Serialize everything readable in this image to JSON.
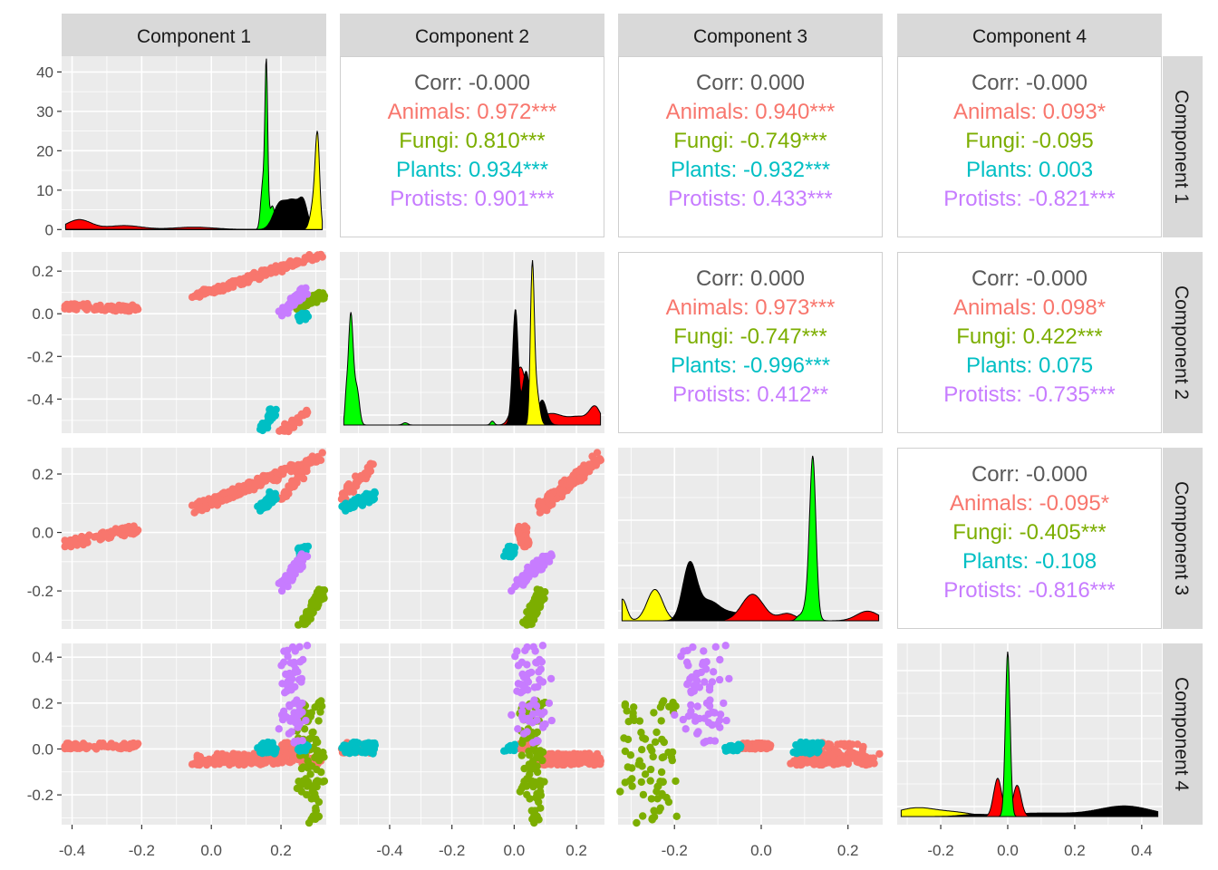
{
  "chart_data": {
    "type": "scatter",
    "title": "",
    "variables": [
      "Component 1",
      "Component 2",
      "Component 3",
      "Component 4"
    ],
    "groups": [
      {
        "name": "Animals",
        "color": "#F8766D"
      },
      {
        "name": "Fungi",
        "color": "#7CAE00"
      },
      {
        "name": "Plants",
        "color": "#00BFC4"
      },
      {
        "name": "Protists",
        "color": "#C77CFF"
      }
    ],
    "density_fill_colors": [
      "#FF0000",
      "#00FF00",
      "#000000",
      "#FFFF00"
    ],
    "axes": {
      "x_ticks": [
        [
          "-0.4",
          "-0.2",
          "0.0",
          "0.2"
        ],
        [
          "-0.4",
          "-0.2",
          "0.0",
          "0.2"
        ],
        [
          "-0.2",
          "0.0",
          "0.2"
        ],
        [
          "-0.2",
          "0.0",
          "0.2",
          "0.4"
        ]
      ],
      "y_ticks": [
        [
          "0",
          "10",
          "20",
          "30",
          "40"
        ],
        [
          "-0.4",
          "-0.2",
          "0.0",
          "0.2"
        ],
        [
          "-0.2",
          "0.0",
          "0.2"
        ],
        [
          "-0.2",
          "0.0",
          "0.2",
          "0.4"
        ]
      ],
      "x_ranges": [
        [
          -0.43,
          0.33
        ],
        [
          -0.56,
          0.29
        ],
        [
          -0.33,
          0.28
        ],
        [
          -0.33,
          0.46
        ]
      ],
      "y_range_diag1": [
        -2,
        44
      ]
    },
    "correlations": [
      {
        "row": 0,
        "col": 1,
        "corr": "Corr: -0.000",
        "values": [
          "Animals: 0.972***",
          "Fungi: 0.810***",
          "Plants: 0.934***",
          "Protists: 0.901***"
        ]
      },
      {
        "row": 0,
        "col": 2,
        "corr": "Corr: 0.000",
        "values": [
          "Animals: 0.940***",
          "Fungi: -0.749***",
          "Plants: -0.932***",
          "Protists: 0.433***"
        ]
      },
      {
        "row": 0,
        "col": 3,
        "corr": "Corr: -0.000",
        "values": [
          "Animals: 0.093*",
          "Fungi: -0.095",
          "Plants: 0.003",
          "Protists: -0.821***"
        ]
      },
      {
        "row": 1,
        "col": 2,
        "corr": "Corr: 0.000",
        "values": [
          "Animals: 0.973***",
          "Fungi: -0.747***",
          "Plants: -0.996***",
          "Protists: 0.412**"
        ]
      },
      {
        "row": 1,
        "col": 3,
        "corr": "Corr: -0.000",
        "values": [
          "Animals: 0.098*",
          "Fungi: 0.422***",
          "Plants: 0.075",
          "Protists: -0.735***"
        ]
      },
      {
        "row": 2,
        "col": 3,
        "corr": "Corr: -0.000",
        "values": [
          "Animals: -0.095*",
          "Fungi: -0.405***",
          "Plants: -0.108",
          "Protists: -0.816***"
        ]
      }
    ],
    "densities": [
      {
        "var": 0,
        "curves": [
          {
            "fill": "#FF0000",
            "peaks": [
              [
                -0.38,
                2.5,
                0.035
              ],
              [
                -0.25,
                1.0,
                0.05
              ],
              [
                -0.05,
                0.6,
                0.06
              ]
            ]
          },
          {
            "fill": "#00FF00",
            "peaks": [
              [
                0.148,
                12,
                0.006
              ],
              [
                0.158,
                40,
                0.004
              ],
              [
                0.175,
                6,
                0.008
              ]
            ]
          },
          {
            "fill": "#000000",
            "peaks": [
              [
                0.195,
                6,
                0.018
              ],
              [
                0.235,
                7,
                0.02
              ],
              [
                0.265,
                5.5,
                0.012
              ]
            ]
          },
          {
            "fill": "#FFFF00",
            "peaks": [
              [
                0.305,
                19.5,
                0.006
              ],
              [
                0.296,
                8,
                0.01
              ]
            ]
          }
        ]
      },
      {
        "var": 1,
        "curves": [
          {
            "fill": "#00FF00",
            "peaks": [
              [
                -0.54,
                5,
                0.004
              ],
              [
                -0.525,
                29,
                0.008
              ],
              [
                -0.505,
                9,
                0.008
              ],
              [
                -0.35,
                0.6,
                0.008
              ],
              [
                -0.07,
                1.0,
                0.006
              ]
            ]
          },
          {
            "fill": "#FF0000",
            "peaks": [
              [
                0.02,
                15,
                0.02
              ],
              [
                0.12,
                3,
                0.04
              ],
              [
                0.26,
                4.5,
                0.018
              ],
              [
                0.21,
                2,
                0.03
              ]
            ]
          },
          {
            "fill": "#000000",
            "peaks": [
              [
                -0.005,
                6,
                0.008
              ],
              [
                0.005,
                27,
                0.008
              ],
              [
                0.038,
                14,
                0.012
              ],
              [
                0.09,
                6.5,
                0.014
              ]
            ]
          },
          {
            "fill": "#FFFF00",
            "peaks": [
              [
                0.058,
                38,
                0.006
              ],
              [
                0.07,
                10,
                0.01
              ]
            ]
          }
        ]
      },
      {
        "var": 2,
        "curves": [
          {
            "fill": "#FFFF00",
            "peaks": [
              [
                -0.32,
                9,
                0.01
              ],
              [
                -0.245,
                13,
                0.018
              ]
            ]
          },
          {
            "fill": "#000000",
            "peaks": [
              [
                -0.165,
                23,
                0.016
              ],
              [
                -0.12,
                8,
                0.025
              ],
              [
                -0.06,
                3,
                0.025
              ]
            ]
          },
          {
            "fill": "#FF0000",
            "peaks": [
              [
                -0.02,
                11,
                0.025
              ],
              [
                0.06,
                3,
                0.02
              ],
              [
                0.245,
                4,
                0.025
              ]
            ]
          },
          {
            "fill": "#00FF00",
            "peaks": [
              [
                0.119,
                60,
                0.007
              ],
              [
                0.112,
                10,
                0.012
              ],
              [
                0.085,
                1.2,
                0.006
              ]
            ]
          }
        ]
      },
      {
        "var": 3,
        "curves": [
          {
            "fill": "#FFFF00",
            "peaks": [
              [
                -0.27,
                5,
                0.06
              ],
              [
                -0.15,
                2,
                0.05
              ]
            ]
          },
          {
            "fill": "#000000",
            "peaks": [
              [
                -0.1,
                1,
                0.04
              ],
              [
                0.1,
                2,
                0.1
              ],
              [
                0.35,
                6,
                0.08
              ]
            ]
          },
          {
            "fill": "#FF0000",
            "peaks": [
              [
                -0.03,
                22,
                0.012
              ],
              [
                0.028,
                18,
                0.012
              ]
            ]
          },
          {
            "fill": "#00FF00",
            "peaks": [
              [
                0.0,
                95,
                0.007
              ]
            ]
          }
        ]
      }
    ],
    "clusters": [
      {
        "group": 0,
        "n": 70,
        "pts": [
          [
            -0.42,
            0.035
          ],
          [
            -0.21,
            0.025
          ],
          [
            -0.33,
            -0.04
          ],
          [
            -0.2,
            0.015
          ],
          [
            -0.42,
            0.0,
            -0.41,
            0.025
          ]
        ]
      },
      {
        "group": 0,
        "n": 180,
        "pts": [
          [
            -0.05,
            0.08
          ],
          [
            0.32,
            0.28
          ],
          [
            -0.04,
            0.08
          ],
          [
            0.31,
            0.26
          ],
          [
            -0.05,
            -0.07,
            0.15,
            -0.02
          ]
        ]
      },
      {
        "group": 0,
        "n": 35,
        "pts": [
          [
            0.2,
            -0.55
          ],
          [
            0.29,
            -0.45
          ],
          [
            0.2,
            0.12
          ],
          [
            0.29,
            0.24
          ],
          [
            0.26,
            -0.02,
            0.3,
            0.03
          ]
        ]
      },
      {
        "group": 1,
        "n": 90,
        "pts": [
          [
            0.25,
            0.03
          ],
          [
            0.32,
            0.09
          ],
          [
            0.23,
            -0.34
          ],
          [
            0.33,
            -0.2
          ],
          [
            0.29,
            -0.33,
            0.34,
            0.21
          ]
        ]
      },
      {
        "group": 2,
        "n": 45,
        "pts": [
          [
            0.14,
            -0.56
          ],
          [
            0.18,
            -0.45
          ],
          [
            0.15,
            0.08
          ],
          [
            0.18,
            0.13
          ],
          [
            0.15,
            -0.02,
            0.19,
            0.03
          ]
        ]
      },
      {
        "group": 2,
        "n": 25,
        "pts": [
          [
            0.25,
            -0.02
          ],
          [
            0.27,
            -0.01
          ],
          [
            0.26,
            -0.07
          ],
          [
            0.28,
            -0.06
          ],
          [
            0.22,
            -0.01,
            0.24,
            0.02
          ]
        ]
      },
      {
        "group": 3,
        "n": 70,
        "pts": [
          [
            0.2,
            0.0
          ],
          [
            0.27,
            0.11
          ],
          [
            0.2,
            -0.19
          ],
          [
            0.27,
            -0.08
          ],
          [
            0.17,
            0.02,
            0.28,
            0.46
          ]
        ]
      }
    ],
    "legend": "none",
    "grid": true
  }
}
